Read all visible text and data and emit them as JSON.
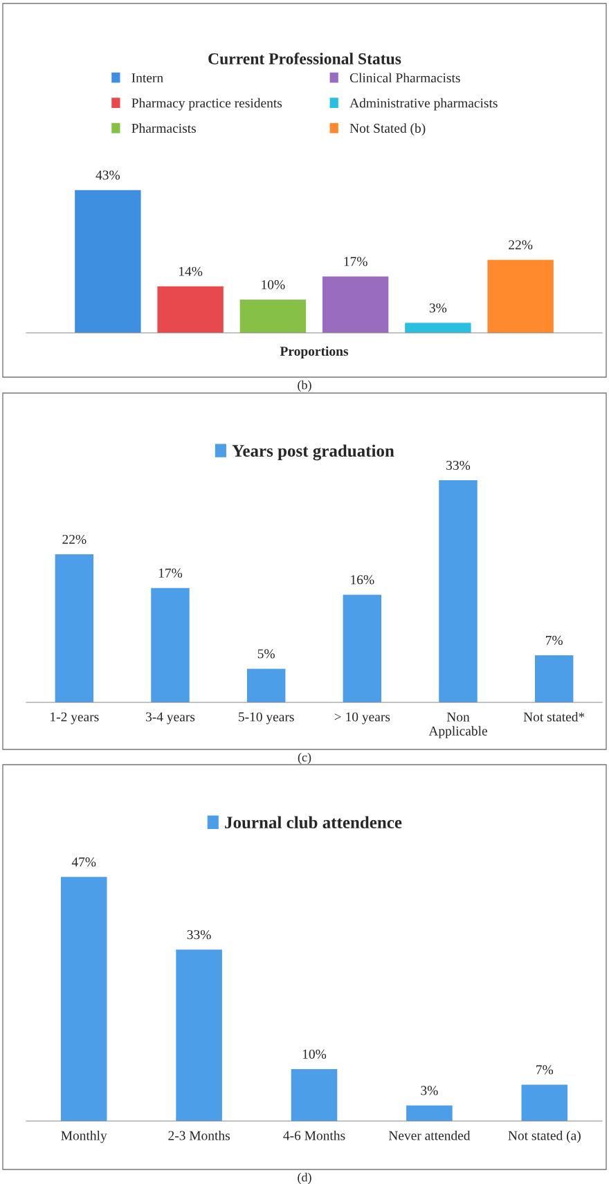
{
  "chart_data": [
    {
      "type": "bar",
      "title": "Current Professional Status",
      "xlabel": "Proportions",
      "categories": [
        null
      ],
      "series": [
        {
          "name": "Intern",
          "color": "#3f8fe0",
          "values": [
            43
          ],
          "value_labels": [
            "43%"
          ]
        },
        {
          "name": "Pharmacy practice residents",
          "color": "#e8494c",
          "values": [
            14
          ],
          "value_labels": [
            "14%"
          ]
        },
        {
          "name": "Pharmacists",
          "color": "#86c046",
          "values": [
            10
          ],
          "value_labels": [
            "10%"
          ]
        },
        {
          "name": "Clinical Pharmacists",
          "color": "#9a6cbf",
          "values": [
            17
          ],
          "value_labels": [
            "17%"
          ]
        },
        {
          "name": "Administrative pharmacists",
          "color": "#28bfe0",
          "values": [
            3
          ],
          "value_labels": [
            "3%"
          ]
        },
        {
          "name": "Not Stated (b)",
          "color": "#ff8a2e",
          "values": [
            22
          ],
          "value_labels": [
            "22%"
          ]
        }
      ],
      "legend": "top",
      "tick_labels": false,
      "annotations": [
        "(b)"
      ]
    },
    {
      "type": "bar",
      "categories": [
        "1-2 years",
        "3-4 years",
        "5-10 years",
        "> 10 years",
        "Non\nApplicable",
        "Not stated*"
      ],
      "series": [
        {
          "name": "Years post graduation",
          "color": "#4c9ee8",
          "values": [
            22,
            17,
            5,
            16,
            33,
            7
          ],
          "value_labels": [
            "22%",
            "17%",
            "5%",
            "16%",
            "33%",
            "7%"
          ]
        }
      ],
      "legend": "top",
      "tick_labels": "x",
      "annotations": [
        "(c)"
      ]
    },
    {
      "type": "bar",
      "categories": [
        "Monthly",
        "2-3 Months",
        "4-6 Months",
        "Never attended",
        "Not stated (a)"
      ],
      "series": [
        {
          "name": "Journal club attendence",
          "color": "#4c9ee8",
          "values": [
            47,
            33,
            10,
            3,
            7
          ],
          "value_labels": [
            "47%",
            "33%",
            "10%",
            "3%",
            "7%"
          ]
        }
      ],
      "legend": "top",
      "tick_labels": "x",
      "annotations": [
        "(d)"
      ]
    }
  ]
}
